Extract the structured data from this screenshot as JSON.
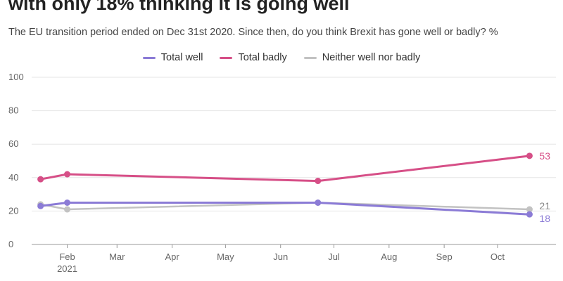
{
  "chart_data": {
    "type": "line",
    "title": "with only 18% thinking it is going well",
    "subtitle": "The EU transition period ended on Dec 31st 2020. Since then, do you think Brexit has gone well or badly? %",
    "ylim": [
      0,
      100
    ],
    "yticks": [
      0,
      20,
      40,
      60,
      80,
      100
    ],
    "xlim": [
      "2021-01-12",
      "2021-10-22"
    ],
    "xticks": [
      {
        "date": "2021-02-01",
        "label": "Feb",
        "sublabel": "2021"
      },
      {
        "date": "2021-03-01",
        "label": "Mar"
      },
      {
        "date": "2021-04-01",
        "label": "Apr"
      },
      {
        "date": "2021-05-01",
        "label": "May"
      },
      {
        "date": "2021-06-01",
        "label": "Jun"
      },
      {
        "date": "2021-07-01",
        "label": "Jul"
      },
      {
        "date": "2021-08-01",
        "label": "Aug"
      },
      {
        "date": "2021-09-01",
        "label": "Sep"
      },
      {
        "date": "2021-10-01",
        "label": "Oct"
      }
    ],
    "grid": true,
    "legend_position": "top-center",
    "series": [
      {
        "name": "Total well",
        "color": "#8b7bd6",
        "x": [
          "2021-01-17",
          "2021-02-01",
          "2021-06-22",
          "2021-10-19"
        ],
        "y": [
          23,
          25,
          25,
          18
        ],
        "end_label": "18"
      },
      {
        "name": "Total badly",
        "color": "#d64f87",
        "x": [
          "2021-01-17",
          "2021-02-01",
          "2021-06-22",
          "2021-10-19"
        ],
        "y": [
          39,
          42,
          38,
          53
        ],
        "end_label": "53"
      },
      {
        "name": "Neither well nor badly",
        "color": "#c2c2c2",
        "x": [
          "2021-01-17",
          "2021-02-01",
          "2021-06-22",
          "2021-10-19"
        ],
        "y": [
          24,
          21,
          25,
          21
        ],
        "end_label": "21"
      }
    ]
  }
}
